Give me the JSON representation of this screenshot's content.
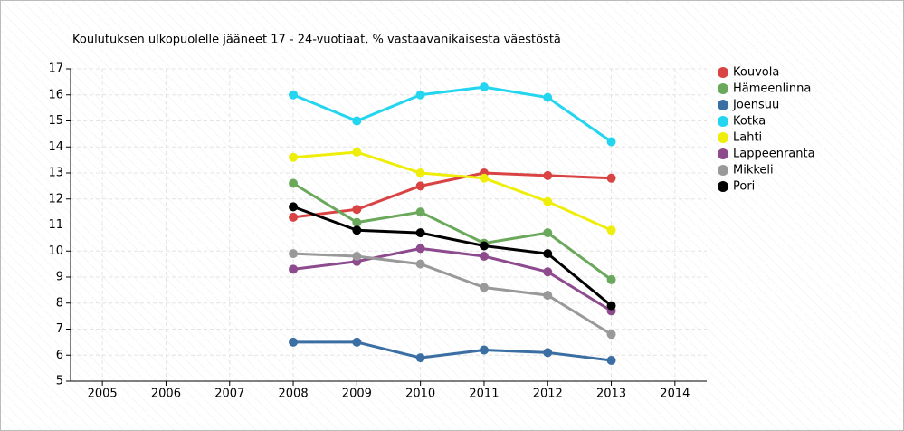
{
  "chart_data": {
    "type": "line",
    "title": "Koulutuksen ulkopuolelle jääneet 17 - 24-vuotiaat, % vastaavanikaisesta väestöstä",
    "x": [
      2008,
      2009,
      2010,
      2011,
      2012,
      2013
    ],
    "series": [
      {
        "name": "Kouvola",
        "color": "#d94343",
        "values": [
          11.3,
          11.6,
          12.5,
          13.0,
          12.9,
          12.8
        ]
      },
      {
        "name": "Hämeenlinna",
        "color": "#6aa85b",
        "values": [
          12.6,
          11.1,
          11.5,
          10.3,
          10.7,
          8.9
        ]
      },
      {
        "name": "Joensuu",
        "color": "#3b6ea3",
        "values": [
          6.5,
          6.5,
          5.9,
          6.2,
          6.1,
          5.8
        ]
      },
      {
        "name": "Kotka",
        "color": "#24d5f0",
        "values": [
          16.0,
          15.0,
          16.0,
          16.3,
          15.9,
          14.2
        ]
      },
      {
        "name": "Lahti",
        "color": "#eeee0a",
        "values": [
          13.6,
          13.8,
          13.0,
          12.8,
          11.9,
          10.8
        ]
      },
      {
        "name": "Lappeenranta",
        "color": "#8d4b8d",
        "values": [
          9.3,
          9.6,
          10.1,
          9.8,
          9.2,
          7.7
        ]
      },
      {
        "name": "Mikkeli",
        "color": "#999999",
        "values": [
          9.9,
          9.8,
          9.5,
          8.6,
          8.3,
          6.8
        ]
      },
      {
        "name": "Pori",
        "color": "#000000",
        "values": [
          11.7,
          10.8,
          10.7,
          10.2,
          9.9,
          7.9
        ]
      }
    ],
    "xlim": [
      2004.5,
      2014.5
    ],
    "xticks": [
      2005,
      2006,
      2007,
      2008,
      2009,
      2010,
      2011,
      2012,
      2013,
      2014
    ],
    "ylim": [
      5,
      17
    ],
    "yticks": [
      5,
      6,
      7,
      8,
      9,
      10,
      11,
      12,
      13,
      14,
      15,
      16,
      17
    ],
    "grid": true,
    "legend": "right"
  }
}
